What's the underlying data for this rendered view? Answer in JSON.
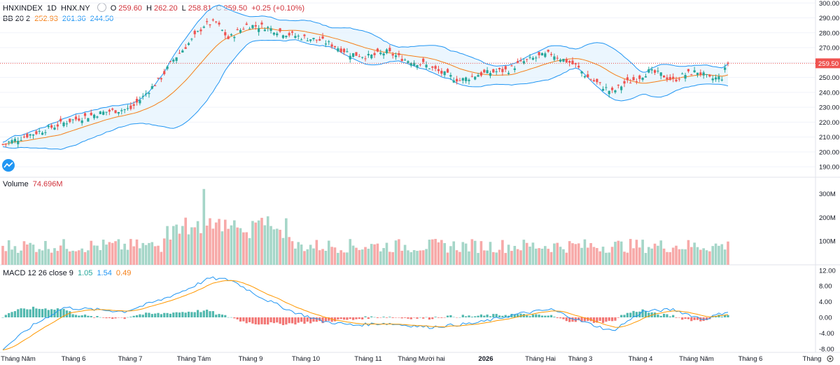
{
  "header": {
    "symbol": "HNXINDEX",
    "interval": "1D",
    "exchange": "HNX.NY",
    "open_label": "O",
    "open": "259.60",
    "high_label": "H",
    "high": "262.20",
    "low_label": "L",
    "low": "258.81",
    "close_label": "C",
    "close": "259.50",
    "change": "+0.25 (+0.10%)"
  },
  "bb": {
    "label": "BB 20 2",
    "basis": "252.93",
    "upper": "261.36",
    "lower": "244.50"
  },
  "volume_panel": {
    "label": "Volume",
    "value": "74.696M"
  },
  "macd_panel": {
    "label": "MACD 12 26 close 9",
    "hist": "1.05",
    "macd": "1.54",
    "signal": "0.49"
  },
  "price_tag": "259.50",
  "colors": {
    "up": "#26a69a",
    "down": "#ef5350",
    "bb_upper": "#2196f3",
    "bb_basis": "#f57f17",
    "bb_fill": "#e3f2fd",
    "macd": "#2196f3",
    "signal": "#ff9800"
  },
  "chart_data": {
    "type": "candlestick",
    "price_axis": {
      "ylim": [
        183,
        302
      ],
      "ticks": [
        "300.00",
        "290.00",
        "280.00",
        "270.00",
        "260.00",
        "250.00",
        "240.00",
        "230.00",
        "220.00",
        "210.00",
        "200.00",
        "190.00"
      ]
    },
    "volume_axis": {
      "ticks": [
        "300M",
        "200M",
        "100M"
      ]
    },
    "macd_axis": {
      "ticks": [
        "12.00",
        "8.00",
        "4.00",
        "0.00",
        "-4.00",
        "-8.00"
      ]
    },
    "x_labels": [
      "Tháng Năm",
      "Tháng 6",
      "Tháng 7",
      "Tháng Tám",
      "Tháng 9",
      "Tháng 10",
      "Tháng 11",
      "Tháng Mười hai",
      "2026",
      "Tháng Hai",
      "Tháng 3",
      "Tháng 4",
      "Tháng Năm",
      "Tháng 6",
      "Tháng"
    ],
    "close_keyframes": [
      [
        0,
        205
      ],
      [
        8,
        211
      ],
      [
        14,
        215
      ],
      [
        18,
        218
      ],
      [
        22,
        221
      ],
      [
        28,
        224
      ],
      [
        34,
        227
      ],
      [
        42,
        229
      ],
      [
        46,
        237
      ],
      [
        52,
        250
      ],
      [
        56,
        262
      ],
      [
        62,
        275
      ],
      [
        66,
        285
      ],
      [
        70,
        287
      ],
      [
        74,
        276
      ],
      [
        80,
        285
      ],
      [
        86,
        284
      ],
      [
        92,
        280
      ],
      [
        98,
        277
      ],
      [
        104,
        275
      ],
      [
        108,
        272
      ],
      [
        114,
        266
      ],
      [
        120,
        264
      ],
      [
        126,
        267
      ],
      [
        132,
        262
      ],
      [
        138,
        259
      ],
      [
        144,
        253
      ],
      [
        150,
        248
      ],
      [
        156,
        252
      ],
      [
        162,
        254
      ],
      [
        166,
        255
      ],
      [
        170,
        260
      ],
      [
        176,
        264
      ],
      [
        180,
        266
      ],
      [
        184,
        262
      ],
      [
        188,
        258
      ],
      [
        192,
        250
      ],
      [
        196,
        245
      ],
      [
        200,
        240
      ],
      [
        204,
        246
      ],
      [
        208,
        249
      ],
      [
        212,
        254
      ],
      [
        216,
        252
      ],
      [
        220,
        248
      ],
      [
        224,
        252
      ],
      [
        228,
        254
      ],
      [
        232,
        249
      ],
      [
        236,
        250
      ],
      [
        238,
        260
      ]
    ],
    "macd_keyframes": [
      [
        0,
        -8
      ],
      [
        10,
        -2
      ],
      [
        20,
        2.5
      ],
      [
        30,
        2
      ],
      [
        40,
        1.5
      ],
      [
        52,
        4.5
      ],
      [
        60,
        7
      ],
      [
        68,
        10
      ],
      [
        75,
        9.5
      ],
      [
        85,
        5
      ],
      [
        95,
        1.5
      ],
      [
        105,
        -1
      ],
      [
        115,
        -2
      ],
      [
        125,
        -1.5
      ],
      [
        140,
        -2.5
      ],
      [
        155,
        -1.5
      ],
      [
        170,
        1
      ],
      [
        180,
        2
      ],
      [
        190,
        -1
      ],
      [
        200,
        -3.5
      ],
      [
        210,
        1.5
      ],
      [
        220,
        2
      ],
      [
        230,
        -0.5
      ],
      [
        238,
        1.54
      ]
    ],
    "volume_range": [
      40,
      300
    ],
    "bar_count": 239
  }
}
